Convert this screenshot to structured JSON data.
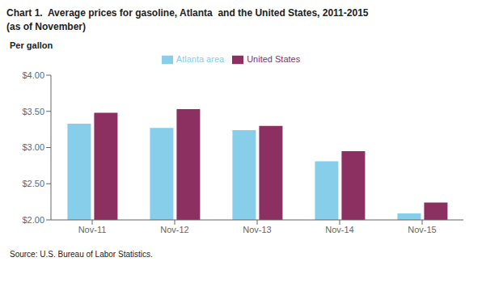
{
  "chart_data": {
    "type": "bar",
    "title": "Chart 1.  Average prices for gasoline, Atlanta  and the United States, 2011-2015",
    "subtitle": "(as of November)",
    "y_label": "Per gallon",
    "annotations": [
      "Source: U.S. Bureau of Labor Statistics."
    ],
    "categories": [
      "Nov-11",
      "Nov-12",
      "Nov-13",
      "Nov-14",
      "Nov-15"
    ],
    "series": [
      {
        "name": "Atlanta area",
        "color": "#87CEEB",
        "values": [
          3.33,
          3.27,
          3.24,
          2.81,
          2.09
        ]
      },
      {
        "name": "United States",
        "color": "#8B3060",
        "values": [
          3.48,
          3.53,
          3.3,
          2.95,
          2.24
        ]
      }
    ],
    "ylim": [
      2,
      4
    ],
    "yticks": [
      {
        "value": 2,
        "label": "$2.00"
      },
      {
        "value": 2.5,
        "label": "$2.50"
      },
      {
        "value": 3,
        "label": "$3.00"
      },
      {
        "value": 3.5,
        "label": "$3.50"
      },
      {
        "value": 4,
        "label": "$4.00"
      }
    ],
    "grid": false,
    "legend": "top"
  }
}
